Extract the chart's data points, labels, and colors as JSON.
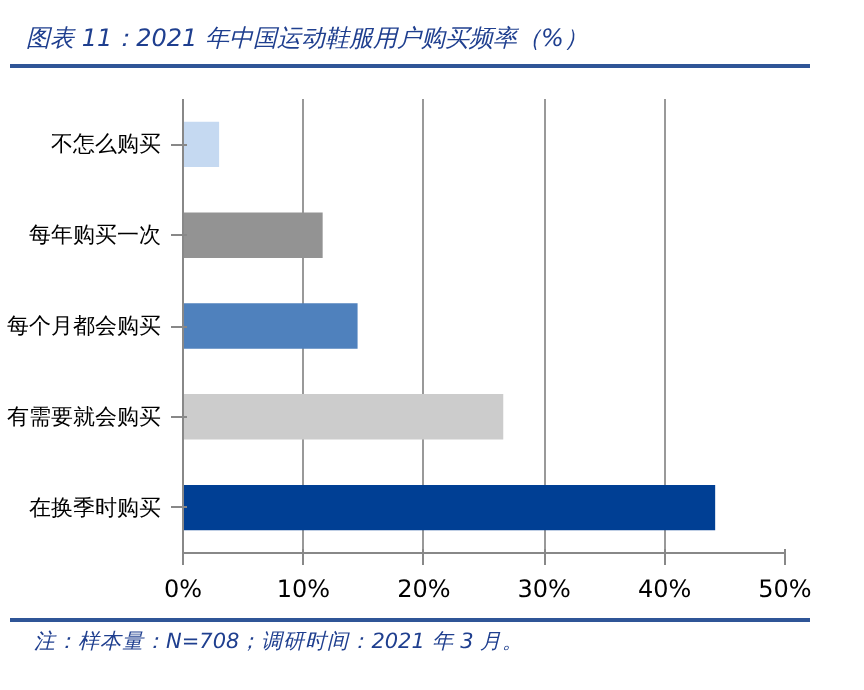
{
  "chart_data": {
    "type": "bar",
    "orientation": "horizontal",
    "title": "图表 11：2021 年中国运动鞋服用户购买频率（%）",
    "categories": [
      "不怎么购买",
      "每年购买一次",
      "每个月都会购买",
      "有需要就会购买",
      "在换季时购买"
    ],
    "values": [
      3.0,
      11.6,
      14.5,
      26.6,
      44.2
    ],
    "colors": [
      "#c5d9f1",
      "#939393",
      "#4f81bd",
      "#cccccc",
      "#003f94"
    ],
    "xlim": [
      0,
      50
    ],
    "xticks": [
      {
        "value": 0,
        "label": "0%"
      },
      {
        "value": 10,
        "label": "10%"
      },
      {
        "value": 20,
        "label": "20%"
      },
      {
        "value": 30,
        "label": "30%"
      },
      {
        "value": 40,
        "label": "40%"
      },
      {
        "value": 50,
        "label": "50%"
      }
    ],
    "grid": "x",
    "annotations": [
      "注：样本量：N=708；调研时间：2021 年 3 月。"
    ]
  }
}
